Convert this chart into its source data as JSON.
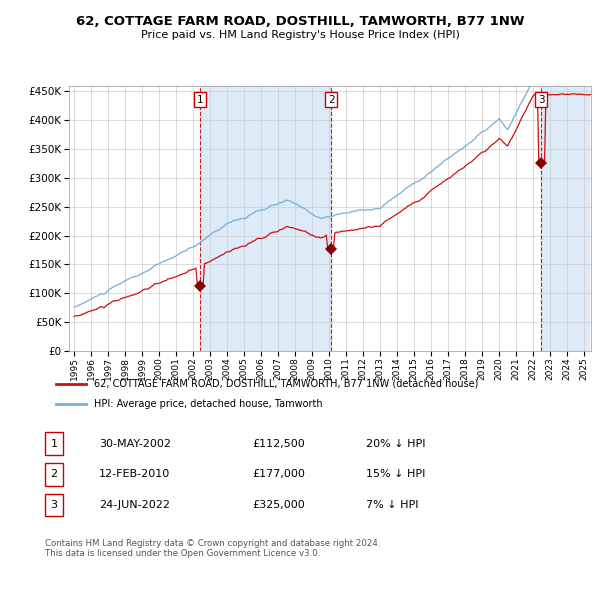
{
  "title1": "62, COTTAGE FARM ROAD, DOSTHILL, TAMWORTH, B77 1NW",
  "title2": "Price paid vs. HM Land Registry's House Price Index (HPI)",
  "sale1_date": "30-MAY-2002",
  "sale1_price": 112500,
  "sale1_label": "1",
  "sale1_pct": "20%",
  "sale2_date": "12-FEB-2010",
  "sale2_price": 177000,
  "sale2_label": "2",
  "sale2_pct": "15%",
  "sale3_date": "24-JUN-2022",
  "sale3_price": 325000,
  "sale3_label": "3",
  "sale3_pct": "7%",
  "legend1": "62, COTTAGE FARM ROAD, DOSTHILL, TAMWORTH, B77 1NW (detached house)",
  "legend2": "HPI: Average price, detached house, Tamworth",
  "footer1": "Contains HM Land Registry data © Crown copyright and database right 2024.",
  "footer2": "This data is licensed under the Open Government Licence v3.0.",
  "hpi_color": "#7aadd4",
  "price_color": "#cc1111",
  "marker_color": "#880000",
  "bg_shaded": "#ddeaf7",
  "bg_white": "#ffffff",
  "grid_color": "#cccccc",
  "ylim_min": 0,
  "ylim_max": 460000,
  "x_start_year": 1995,
  "x_end_year": 2025
}
